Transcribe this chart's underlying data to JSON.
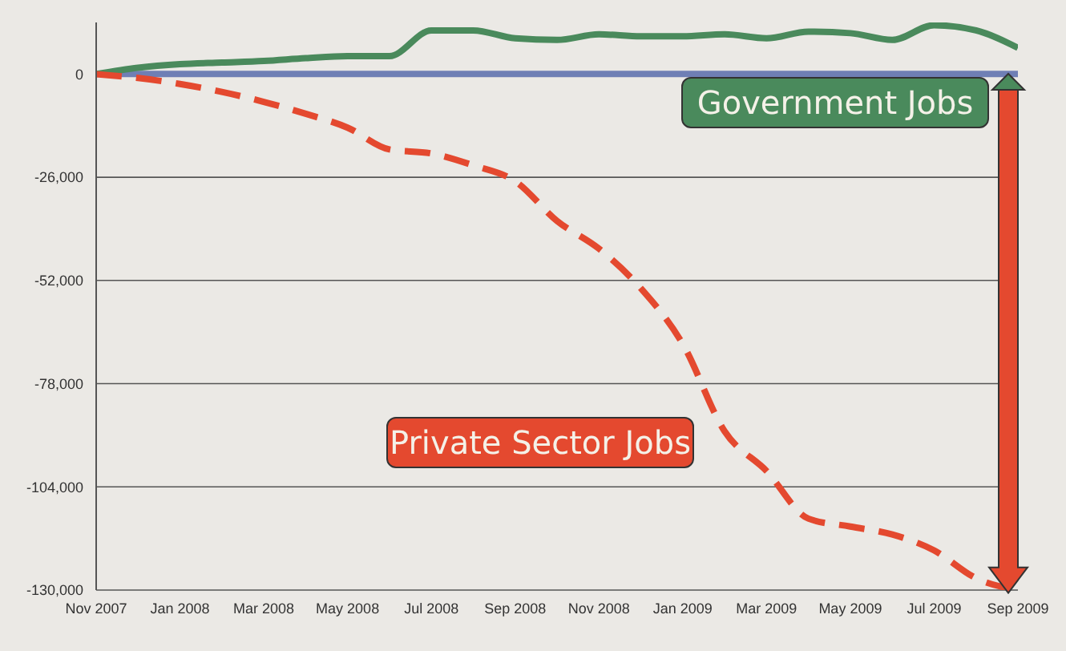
{
  "chart_data": {
    "type": "line",
    "categories": [
      "Nov 2007",
      null,
      "Jan 2008",
      null,
      "Mar 2008",
      null,
      "May 2008",
      null,
      "Jul 2008",
      null,
      "Sep 2008",
      null,
      "Nov 2008",
      null,
      "Jan 2009",
      null,
      "Mar 2009",
      null,
      "May 2009",
      null,
      "Jul 2009",
      null,
      "Sep 2009"
    ],
    "series": [
      {
        "name": "Government Jobs",
        "color": "#4a8a5c",
        "line_style": "solid",
        "values": [
          0,
          1600,
          2500,
          2900,
          3300,
          4000,
          4500,
          4500,
          11000,
          11000,
          9000,
          8600,
          10000,
          9500,
          9500,
          10000,
          9000,
          10700,
          10300,
          8600,
          12300,
          11000,
          6600
        ]
      },
      {
        "name": "Private Sector Jobs",
        "color": "#e4492f",
        "line_style": "dashed",
        "values": [
          0,
          -1000,
          -2500,
          -4500,
          -7000,
          -10000,
          -13500,
          -19000,
          -20000,
          -23000,
          -27000,
          -37000,
          -44000,
          -54000,
          -68000,
          -90000,
          -100000,
          -112000,
          -114000,
          -116000,
          -120000,
          -127000,
          -130000
        ]
      }
    ],
    "ylim": [
      -130000,
      13000
    ],
    "yticks": [
      {
        "value": 0,
        "label": "0"
      },
      {
        "value": -26000,
        "label": "-26,000"
      },
      {
        "value": -52000,
        "label": "-52,000"
      },
      {
        "value": -78000,
        "label": "-78,000"
      },
      {
        "value": -104000,
        "label": "-104,000"
      },
      {
        "value": -130000,
        "label": "-130,000"
      }
    ],
    "grid": "y",
    "marker": "none",
    "legend": "right",
    "ref_lines": [
      {
        "axis": "y",
        "value": 0,
        "label": null,
        "color": "#6f7fb5"
      }
    ]
  }
}
